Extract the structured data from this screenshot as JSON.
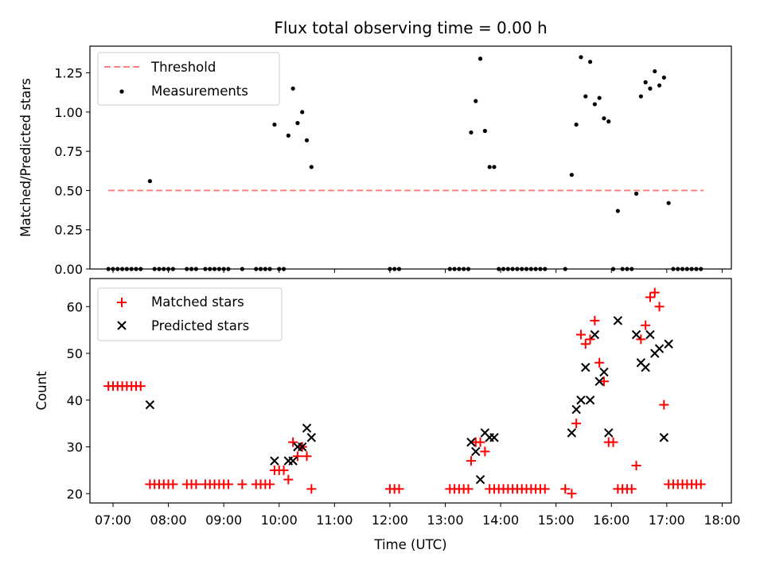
{
  "chart_data": [
    {
      "type": "scatter",
      "title": "Flux total observing time = 0.00 h",
      "xlabel": "",
      "ylabel": "Matched/Predicted stars",
      "xlim": [
        "06:35",
        "18:10"
      ],
      "ylim": [
        0,
        1.42
      ],
      "yticks": [
        0,
        0.25,
        0.5,
        0.75,
        1.0,
        1.25
      ],
      "yticklabels": [
        "0.00",
        "0.25",
        "0.50",
        "0.75",
        "1.00",
        "1.25"
      ],
      "grid": false,
      "legend_position": "top-left",
      "series": [
        {
          "name": "Threshold",
          "style": "dashed-line",
          "color": "#ff8080",
          "points": [
            [
              "06:55",
              0.5
            ],
            [
              "17:40",
              0.5
            ]
          ]
        },
        {
          "name": "Measurements",
          "style": "dot",
          "color": "#000000",
          "points": [
            [
              "06:55",
              0
            ],
            [
              "07:00",
              0
            ],
            [
              "07:05",
              0
            ],
            [
              "07:10",
              0
            ],
            [
              "07:15",
              0
            ],
            [
              "07:20",
              0
            ],
            [
              "07:25",
              0
            ],
            [
              "07:30",
              0
            ],
            [
              "07:40",
              0.56
            ],
            [
              "07:45",
              0
            ],
            [
              "07:50",
              0
            ],
            [
              "07:55",
              0
            ],
            [
              "08:00",
              0
            ],
            [
              "08:05",
              0
            ],
            [
              "08:20",
              0
            ],
            [
              "08:25",
              0
            ],
            [
              "08:30",
              0
            ],
            [
              "08:40",
              0
            ],
            [
              "08:45",
              0
            ],
            [
              "08:50",
              0
            ],
            [
              "08:55",
              0
            ],
            [
              "09:00",
              0
            ],
            [
              "09:05",
              0
            ],
            [
              "09:20",
              0
            ],
            [
              "09:35",
              0
            ],
            [
              "09:40",
              0
            ],
            [
              "09:45",
              0
            ],
            [
              "09:50",
              0
            ],
            [
              "09:55",
              0.92
            ],
            [
              "10:00",
              0
            ],
            [
              "10:05",
              0
            ],
            [
              "10:10",
              0.85
            ],
            [
              "10:15",
              1.15
            ],
            [
              "10:20",
              0.93
            ],
            [
              "10:25",
              1.0
            ],
            [
              "10:30",
              0.82
            ],
            [
              "10:35",
              0.65
            ],
            [
              "12:00",
              0
            ],
            [
              "12:05",
              0
            ],
            [
              "12:10",
              0
            ],
            [
              "13:05",
              0
            ],
            [
              "13:10",
              0
            ],
            [
              "13:15",
              0
            ],
            [
              "13:20",
              0
            ],
            [
              "13:25",
              0
            ],
            [
              "13:28",
              0.87
            ],
            [
              "13:33",
              1.07
            ],
            [
              "13:38",
              1.34
            ],
            [
              "13:43",
              0.88
            ],
            [
              "13:48",
              0.65
            ],
            [
              "13:53",
              0.65
            ],
            [
              "13:58",
              0
            ],
            [
              "14:03",
              0
            ],
            [
              "14:08",
              0
            ],
            [
              "14:13",
              0
            ],
            [
              "14:18",
              0
            ],
            [
              "14:23",
              0
            ],
            [
              "14:28",
              0
            ],
            [
              "14:33",
              0
            ],
            [
              "14:38",
              0
            ],
            [
              "14:43",
              0
            ],
            [
              "14:48",
              0
            ],
            [
              "15:10",
              0
            ],
            [
              "15:17",
              0.6
            ],
            [
              "15:22",
              0.92
            ],
            [
              "15:27",
              1.35
            ],
            [
              "15:32",
              1.1
            ],
            [
              "15:37",
              1.32
            ],
            [
              "15:42",
              1.05
            ],
            [
              "15:47",
              1.09
            ],
            [
              "15:52",
              0.96
            ],
            [
              "15:57",
              0.94
            ],
            [
              "16:02",
              0
            ],
            [
              "16:07",
              0.37
            ],
            [
              "16:12",
              0
            ],
            [
              "16:17",
              0
            ],
            [
              "16:22",
              0
            ],
            [
              "16:27",
              0.48
            ],
            [
              "16:32",
              1.1
            ],
            [
              "16:37",
              1.19
            ],
            [
              "16:42",
              1.15
            ],
            [
              "16:47",
              1.26
            ],
            [
              "16:52",
              1.17
            ],
            [
              "16:57",
              1.22
            ],
            [
              "17:02",
              0.42
            ],
            [
              "17:07",
              0
            ],
            [
              "17:12",
              0
            ],
            [
              "17:17",
              0
            ],
            [
              "17:22",
              0
            ],
            [
              "17:27",
              0
            ],
            [
              "17:32",
              0
            ],
            [
              "17:37",
              0
            ]
          ]
        }
      ]
    },
    {
      "type": "scatter",
      "title": "",
      "xlabel": "Time (UTC)",
      "ylabel": "Count",
      "xlim": [
        "06:35",
        "18:10"
      ],
      "ylim": [
        18,
        66
      ],
      "yticks": [
        20,
        30,
        40,
        50,
        60
      ],
      "yticklabels": [
        "20",
        "30",
        "40",
        "50",
        "60"
      ],
      "xticks": [
        "07:00",
        "08:00",
        "09:00",
        "10:00",
        "11:00",
        "12:00",
        "13:00",
        "14:00",
        "15:00",
        "16:00",
        "17:00",
        "18:00"
      ],
      "grid": false,
      "legend_position": "top-left",
      "series": [
        {
          "name": "Matched stars",
          "style": "plus",
          "color": "#ff0000",
          "points": [
            [
              "06:55",
              43
            ],
            [
              "07:00",
              43
            ],
            [
              "07:05",
              43
            ],
            [
              "07:10",
              43
            ],
            [
              "07:15",
              43
            ],
            [
              "07:20",
              43
            ],
            [
              "07:25",
              43
            ],
            [
              "07:30",
              43
            ],
            [
              "07:40",
              22
            ],
            [
              "07:45",
              22
            ],
            [
              "07:50",
              22
            ],
            [
              "07:55",
              22
            ],
            [
              "08:00",
              22
            ],
            [
              "08:05",
              22
            ],
            [
              "08:20",
              22
            ],
            [
              "08:25",
              22
            ],
            [
              "08:30",
              22
            ],
            [
              "08:40",
              22
            ],
            [
              "08:45",
              22
            ],
            [
              "08:50",
              22
            ],
            [
              "08:55",
              22
            ],
            [
              "09:00",
              22
            ],
            [
              "09:05",
              22
            ],
            [
              "09:20",
              22
            ],
            [
              "09:35",
              22
            ],
            [
              "09:40",
              22
            ],
            [
              "09:45",
              22
            ],
            [
              "09:50",
              22
            ],
            [
              "09:55",
              25
            ],
            [
              "10:00",
              25
            ],
            [
              "10:05",
              25
            ],
            [
              "10:10",
              23
            ],
            [
              "10:15",
              31
            ],
            [
              "10:20",
              28
            ],
            [
              "10:25",
              30
            ],
            [
              "10:30",
              28
            ],
            [
              "10:35",
              21
            ],
            [
              "12:00",
              21
            ],
            [
              "12:05",
              21
            ],
            [
              "12:10",
              21
            ],
            [
              "13:05",
              21
            ],
            [
              "13:10",
              21
            ],
            [
              "13:15",
              21
            ],
            [
              "13:20",
              21
            ],
            [
              "13:25",
              21
            ],
            [
              "13:28",
              27
            ],
            [
              "13:33",
              31
            ],
            [
              "13:38",
              31
            ],
            [
              "13:43",
              29
            ],
            [
              "13:48",
              21
            ],
            [
              "13:53",
              21
            ],
            [
              "13:58",
              21
            ],
            [
              "14:03",
              21
            ],
            [
              "14:08",
              21
            ],
            [
              "14:13",
              21
            ],
            [
              "14:18",
              21
            ],
            [
              "14:23",
              21
            ],
            [
              "14:28",
              21
            ],
            [
              "14:33",
              21
            ],
            [
              "14:38",
              21
            ],
            [
              "14:43",
              21
            ],
            [
              "14:48",
              21
            ],
            [
              "15:10",
              21
            ],
            [
              "15:17",
              20
            ],
            [
              "15:22",
              35
            ],
            [
              "15:27",
              54
            ],
            [
              "15:32",
              52
            ],
            [
              "15:37",
              53
            ],
            [
              "15:42",
              57
            ],
            [
              "15:47",
              48
            ],
            [
              "15:52",
              44
            ],
            [
              "15:57",
              31
            ],
            [
              "16:02",
              31
            ],
            [
              "16:07",
              21
            ],
            [
              "16:12",
              21
            ],
            [
              "16:17",
              21
            ],
            [
              "16:22",
              21
            ],
            [
              "16:27",
              26
            ],
            [
              "16:32",
              53
            ],
            [
              "16:37",
              56
            ],
            [
              "16:42",
              62
            ],
            [
              "16:47",
              63
            ],
            [
              "16:52",
              60
            ],
            [
              "16:57",
              39
            ],
            [
              "17:02",
              22
            ],
            [
              "17:07",
              22
            ],
            [
              "17:12",
              22
            ],
            [
              "17:17",
              22
            ],
            [
              "17:22",
              22
            ],
            [
              "17:27",
              22
            ],
            [
              "17:32",
              22
            ],
            [
              "17:37",
              22
            ]
          ]
        },
        {
          "name": "Predicted stars",
          "style": "x",
          "color": "#000000",
          "points": [
            [
              "07:40",
              39
            ],
            [
              "09:55",
              27
            ],
            [
              "10:10",
              27
            ],
            [
              "10:15",
              27
            ],
            [
              "10:20",
              30
            ],
            [
              "10:25",
              30
            ],
            [
              "10:30",
              34
            ],
            [
              "10:35",
              32
            ],
            [
              "13:28",
              31
            ],
            [
              "13:33",
              29
            ],
            [
              "13:38",
              23
            ],
            [
              "13:43",
              33
            ],
            [
              "13:48",
              32
            ],
            [
              "13:53",
              32
            ],
            [
              "15:17",
              33
            ],
            [
              "15:22",
              38
            ],
            [
              "15:27",
              40
            ],
            [
              "15:32",
              47
            ],
            [
              "15:37",
              40
            ],
            [
              "15:42",
              54
            ],
            [
              "15:47",
              44
            ],
            [
              "15:52",
              46
            ],
            [
              "15:57",
              33
            ],
            [
              "16:07",
              57
            ],
            [
              "16:27",
              54
            ],
            [
              "16:32",
              48
            ],
            [
              "16:37",
              47
            ],
            [
              "16:42",
              54
            ],
            [
              "16:47",
              50
            ],
            [
              "16:52",
              51
            ],
            [
              "16:57",
              32
            ],
            [
              "17:02",
              52
            ]
          ]
        }
      ]
    }
  ]
}
